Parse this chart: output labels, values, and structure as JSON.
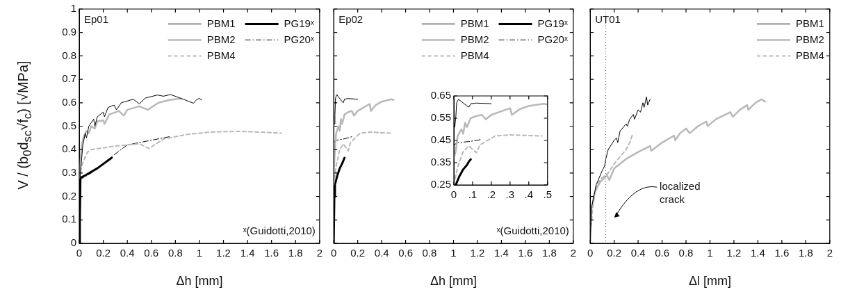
{
  "chart_data": [
    {
      "type": "line",
      "title": "Ep01",
      "xlabel": "Δh [mm]",
      "ylabel": "V / (b$_{0}$d$_{sc}$√f$_{c}$) [√MPa]",
      "legend": "top right",
      "annotations": [
        "ˣ(Guidotti,2010)"
      ],
      "xlim": [
        0,
        2
      ],
      "xticks": [
        0,
        0.2,
        0.4,
        0.6,
        0.8,
        1,
        1.2,
        1.4,
        1.6,
        1.8,
        2
      ],
      "ylim": [
        0,
        1
      ],
      "yticks": [
        0,
        0.1,
        0.2,
        0.3,
        0.4,
        0.5,
        0.6,
        0.7,
        0.8,
        0.9,
        1
      ],
      "series": [
        {
          "name": "PBM1",
          "color": "#000000",
          "line_style": "solid",
          "x": [
            0,
            0.01,
            0.03,
            0.05,
            0.06,
            0.08,
            0.12,
            0.13,
            0.15,
            0.2,
            0.21,
            0.24,
            0.29,
            0.31,
            0.35,
            0.45,
            0.5,
            0.55,
            0.65,
            0.7,
            0.76,
            0.85,
            0.95,
            0.98,
            1.0,
            1.02
          ],
          "values": [
            0,
            0.3,
            0.42,
            0.47,
            0.45,
            0.5,
            0.53,
            0.5,
            0.54,
            0.56,
            0.54,
            0.58,
            0.59,
            0.57,
            0.6,
            0.615,
            0.595,
            0.62,
            0.633,
            0.628,
            0.635,
            0.618,
            0.598,
            0.615,
            0.618,
            0.612
          ]
        },
        {
          "name": "PBM2",
          "color": "#b8b8b8",
          "line_style": "solid",
          "x": [
            0,
            0.02,
            0.04,
            0.06,
            0.08,
            0.1,
            0.13,
            0.15,
            0.2,
            0.21,
            0.25,
            0.33,
            0.37,
            0.4,
            0.5,
            0.57,
            0.6,
            0.66,
            0.75,
            0.85
          ],
          "values": [
            0.28,
            0.42,
            0.46,
            0.48,
            0.47,
            0.5,
            0.49,
            0.52,
            0.525,
            0.51,
            0.55,
            0.565,
            0.545,
            0.57,
            0.585,
            0.57,
            0.58,
            0.6,
            0.612,
            0.618
          ]
        },
        {
          "name": "PBM4",
          "color": "#b8b8b8",
          "line_style": "dashed",
          "x": [
            0,
            0.02,
            0.05,
            0.07,
            0.1,
            0.3,
            0.5,
            0.58,
            0.7,
            0.9,
            1.1,
            1.3,
            1.5,
            1.68
          ],
          "values": [
            0.28,
            0.33,
            0.37,
            0.39,
            0.4,
            0.415,
            0.425,
            0.405,
            0.445,
            0.465,
            0.475,
            0.478,
            0.475,
            0.47
          ]
        },
        {
          "name": "PG19ˣ",
          "color": "#000000",
          "line_style": "solid",
          "x": [
            0,
            0.005,
            0.01,
            0.05,
            0.15,
            0.27
          ],
          "values": [
            0,
            0.1,
            0.28,
            0.29,
            0.32,
            0.365
          ]
        },
        {
          "name": "PG20ˣ",
          "color": "#000000",
          "line_style": "dashdot",
          "x": [
            0,
            0.1,
            0.27,
            0.4,
            0.6,
            0.75
          ],
          "values": [
            0.27,
            0.3,
            0.37,
            0.42,
            0.44,
            0.455
          ]
        }
      ]
    },
    {
      "type": "line",
      "title": "Ep02",
      "xlabel": "Δh [mm]",
      "legend": "top right",
      "annotations": [
        "ˣ(Guidotti,2010)"
      ],
      "tick_labels": "x",
      "xlim": [
        0,
        2
      ],
      "xticks": [
        0,
        0.2,
        0.4,
        0.6,
        0.8,
        1,
        1.2,
        1.4,
        1.6,
        1.8,
        2
      ],
      "ylim": [
        0,
        1
      ],
      "yticks": [
        0,
        0.1,
        0.2,
        0.3,
        0.4,
        0.5,
        0.6,
        0.7,
        0.8,
        0.9,
        1
      ],
      "series": [
        {
          "name": "PBM1",
          "color": "#000000",
          "line_style": "solid",
          "x": [
            0.005,
            0.01,
            0.015,
            0.025,
            0.04,
            0.07,
            0.08,
            0.09,
            0.12,
            0.2
          ],
          "values": [
            0.51,
            0.55,
            0.62,
            0.635,
            0.625,
            0.605,
            0.6,
            0.615,
            0.618,
            0.615
          ]
        },
        {
          "name": "PBM2",
          "color": "#b8b8b8",
          "line_style": "solid",
          "x": [
            0,
            0.01,
            0.02,
            0.04,
            0.05,
            0.06,
            0.07,
            0.09,
            0.12,
            0.15,
            0.17,
            0.2,
            0.25,
            0.3,
            0.31,
            0.35,
            0.4,
            0.48,
            0.5
          ],
          "values": [
            0.3,
            0.4,
            0.47,
            0.5,
            0.48,
            0.53,
            0.51,
            0.55,
            0.56,
            0.565,
            0.545,
            0.565,
            0.58,
            0.595,
            0.565,
            0.59,
            0.605,
            0.615,
            0.612
          ]
        },
        {
          "name": "PBM4",
          "color": "#b8b8b8",
          "line_style": "dashed",
          "x": [
            0,
            0.02,
            0.05,
            0.08,
            0.1,
            0.12,
            0.14,
            0.18,
            0.22,
            0.3,
            0.4,
            0.47
          ],
          "values": [
            0.25,
            0.33,
            0.4,
            0.425,
            0.41,
            0.395,
            0.43,
            0.45,
            0.47,
            0.475,
            0.472,
            0.47
          ]
        },
        {
          "name": "PG19ˣ",
          "color": "#000000",
          "line_style": "solid",
          "x": [
            0,
            0.005,
            0.01,
            0.03,
            0.05,
            0.07,
            0.09
          ],
          "values": [
            0,
            0.2,
            0.25,
            0.29,
            0.32,
            0.34,
            0.365
          ]
        },
        {
          "name": "PG20ˣ",
          "color": "#000000",
          "line_style": "dashdot",
          "x": [
            0,
            0.02,
            0.08,
            0.12,
            0.15
          ],
          "values": [
            0.43,
            0.44,
            0.445,
            0.45,
            0.455
          ]
        }
      ]
    },
    {
      "type": "line",
      "title": "UT01",
      "xlabel": "Δl [mm]",
      "legend": "top right",
      "tick_labels": "x",
      "annotations": [
        "localized crack"
      ],
      "ref_lines": [
        {
          "axis": "x",
          "value": 0.13,
          "color": "#555555",
          "line_style": "dotted"
        }
      ],
      "xlim": [
        0,
        2
      ],
      "xticks": [
        0,
        0.2,
        0.4,
        0.6,
        0.8,
        1,
        1.2,
        1.4,
        1.6,
        1.8,
        2
      ],
      "ylim": [
        0,
        1
      ],
      "yticks": [
        0,
        0.1,
        0.2,
        0.3,
        0.4,
        0.5,
        0.6,
        0.7,
        0.8,
        0.9,
        1
      ],
      "series": [
        {
          "name": "PBM1",
          "color": "#000000",
          "line_style": "solid",
          "x": [
            0,
            0.01,
            0.03,
            0.05,
            0.1,
            0.12,
            0.13,
            0.15,
            0.2,
            0.22,
            0.23,
            0.25,
            0.3,
            0.31,
            0.33,
            0.36,
            0.37,
            0.4,
            0.42,
            0.44,
            0.45,
            0.47,
            0.48,
            0.5
          ],
          "values": [
            0,
            0.15,
            0.2,
            0.25,
            0.31,
            0.33,
            0.36,
            0.4,
            0.44,
            0.45,
            0.43,
            0.48,
            0.51,
            0.5,
            0.53,
            0.55,
            0.53,
            0.57,
            0.56,
            0.6,
            0.58,
            0.625,
            0.59,
            0.615
          ]
        },
        {
          "name": "PBM2",
          "color": "#b8b8b8",
          "line_style": "solid",
          "x": [
            0,
            0.01,
            0.04,
            0.08,
            0.14,
            0.16,
            0.2,
            0.3,
            0.4,
            0.5,
            0.51,
            0.6,
            0.7,
            0.71,
            0.75,
            0.8,
            0.83,
            0.9,
            0.97,
            0.98,
            1.05,
            1.17,
            1.19,
            1.25,
            1.31,
            1.32,
            1.38,
            1.43,
            1.46
          ],
          "values": [
            0,
            0.15,
            0.22,
            0.26,
            0.29,
            0.27,
            0.32,
            0.36,
            0.39,
            0.415,
            0.395,
            0.43,
            0.46,
            0.44,
            0.47,
            0.49,
            0.47,
            0.5,
            0.52,
            0.5,
            0.53,
            0.56,
            0.54,
            0.57,
            0.59,
            0.57,
            0.6,
            0.615,
            0.605
          ]
        },
        {
          "name": "PBM4",
          "color": "#b8b8b8",
          "line_style": "dashed",
          "x": [
            0,
            0.02,
            0.05,
            0.1,
            0.15,
            0.2,
            0.25,
            0.3,
            0.33,
            0.35
          ],
          "values": [
            0.02,
            0.15,
            0.25,
            0.28,
            0.3,
            0.34,
            0.37,
            0.4,
            0.43,
            0.46
          ]
        }
      ]
    },
    {
      "type": "line",
      "xlim": [
        0,
        0.5
      ],
      "xticks": [
        0,
        {
          "value": 0.1,
          "label": ".1"
        },
        {
          "value": 0.2,
          "label": ".2"
        },
        {
          "value": 0.3,
          "label": ".3"
        },
        {
          "value": 0.4,
          "label": ".4"
        },
        {
          "value": 0.5,
          "label": ".5"
        }
      ],
      "ylim": [
        0.25,
        0.65
      ],
      "yticks": [
        0.25,
        0.35,
        0.45,
        0.55,
        0.65
      ],
      "series": [
        {
          "color": "#000000",
          "line_style": "solid",
          "x": [
            0.005,
            0.01,
            0.015,
            0.025,
            0.04,
            0.07,
            0.08,
            0.09,
            0.12,
            0.2
          ],
          "values": [
            0.51,
            0.55,
            0.62,
            0.635,
            0.625,
            0.605,
            0.6,
            0.615,
            0.618,
            0.615
          ]
        },
        {
          "color": "#b8b8b8",
          "line_style": "solid",
          "x": [
            0,
            0.01,
            0.02,
            0.04,
            0.05,
            0.06,
            0.07,
            0.09,
            0.12,
            0.15,
            0.17,
            0.2,
            0.25,
            0.3,
            0.31,
            0.35,
            0.4,
            0.48,
            0.5
          ],
          "values": [
            0.37,
            0.4,
            0.47,
            0.5,
            0.48,
            0.53,
            0.51,
            0.55,
            0.56,
            0.565,
            0.545,
            0.565,
            0.58,
            0.595,
            0.565,
            0.59,
            0.605,
            0.615,
            0.612
          ]
        },
        {
          "color": "#b8b8b8",
          "line_style": "dashed",
          "x": [
            0,
            0.02,
            0.05,
            0.08,
            0.1,
            0.12,
            0.14,
            0.18,
            0.22,
            0.3,
            0.4,
            0.47
          ],
          "values": [
            0.25,
            0.33,
            0.4,
            0.425,
            0.41,
            0.395,
            0.43,
            0.45,
            0.47,
            0.475,
            0.472,
            0.47
          ]
        },
        {
          "color": "#000000",
          "line_style": "solid",
          "x": [
            0.01,
            0.03,
            0.05,
            0.07,
            0.08,
            0.09
          ],
          "values": [
            0.25,
            0.29,
            0.32,
            0.34,
            0.355,
            0.365
          ]
        },
        {
          "color": "#000000",
          "line_style": "dashdot",
          "x": [
            0,
            0.02,
            0.08,
            0.12,
            0.15
          ],
          "values": [
            0.43,
            0.44,
            0.445,
            0.45,
            0.455
          ]
        }
      ]
    }
  ]
}
